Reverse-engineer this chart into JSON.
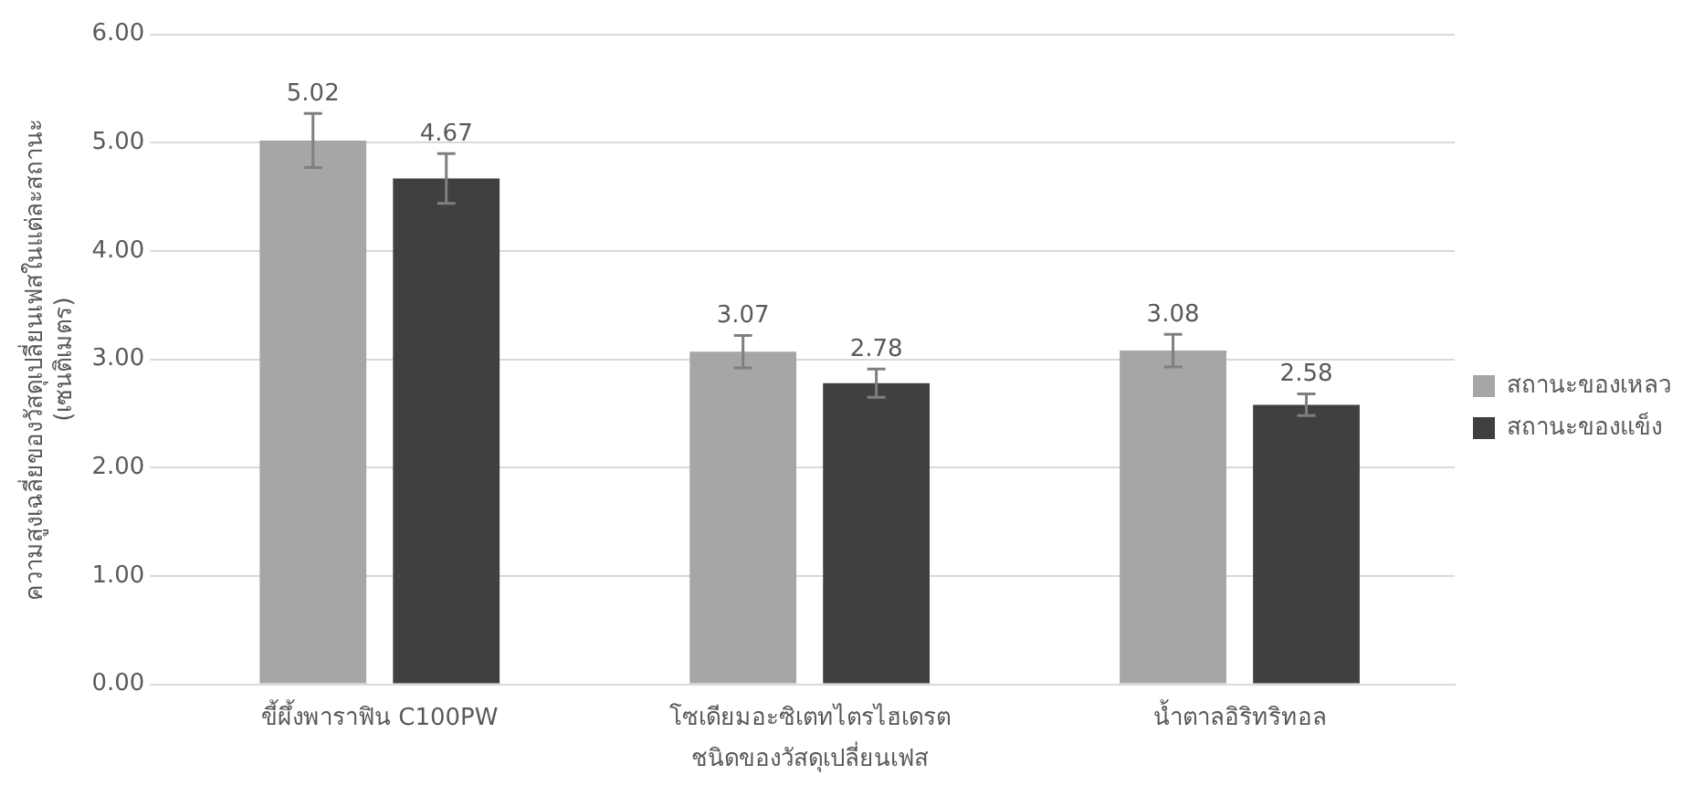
{
  "chart_data": {
    "type": "bar",
    "xlabel": "ชนิดของวัสดุเปลี่ยนเฟส",
    "ylabel": "ความสูงเฉลี่ยของวัสดุเปลี่ยนเฟสในแต่ละสถานะ\n(เซนติเมตร)",
    "categories": [
      "ขี้ผึ้งพาราฟิน C100PW",
      "โซเดียมอะซิเตทไตรไฮเดรต",
      "น้ำตาลอิริทริทอล"
    ],
    "series": [
      {
        "name": "สถานะของเหลว",
        "color": "#a6a6a6",
        "values": [
          5.02,
          3.07,
          3.08
        ],
        "errors": [
          0.25,
          0.15,
          0.15
        ]
      },
      {
        "name": "สถานะของแข็ง",
        "color": "#404040",
        "values": [
          4.67,
          2.78,
          2.58
        ],
        "errors": [
          0.23,
          0.13,
          0.1
        ]
      }
    ],
    "ylim": [
      0,
      6
    ],
    "yticks": [
      {
        "value": 0,
        "label": "0.00"
      },
      {
        "value": 1,
        "label": "1.00"
      },
      {
        "value": 2,
        "label": "2.00"
      },
      {
        "value": 3,
        "label": "3.00"
      },
      {
        "value": 4,
        "label": "4.00"
      },
      {
        "value": 5,
        "label": "5.00"
      },
      {
        "value": 6,
        "label": "6.00"
      }
    ],
    "grid": "y",
    "legend": "right",
    "data_labels": true
  }
}
